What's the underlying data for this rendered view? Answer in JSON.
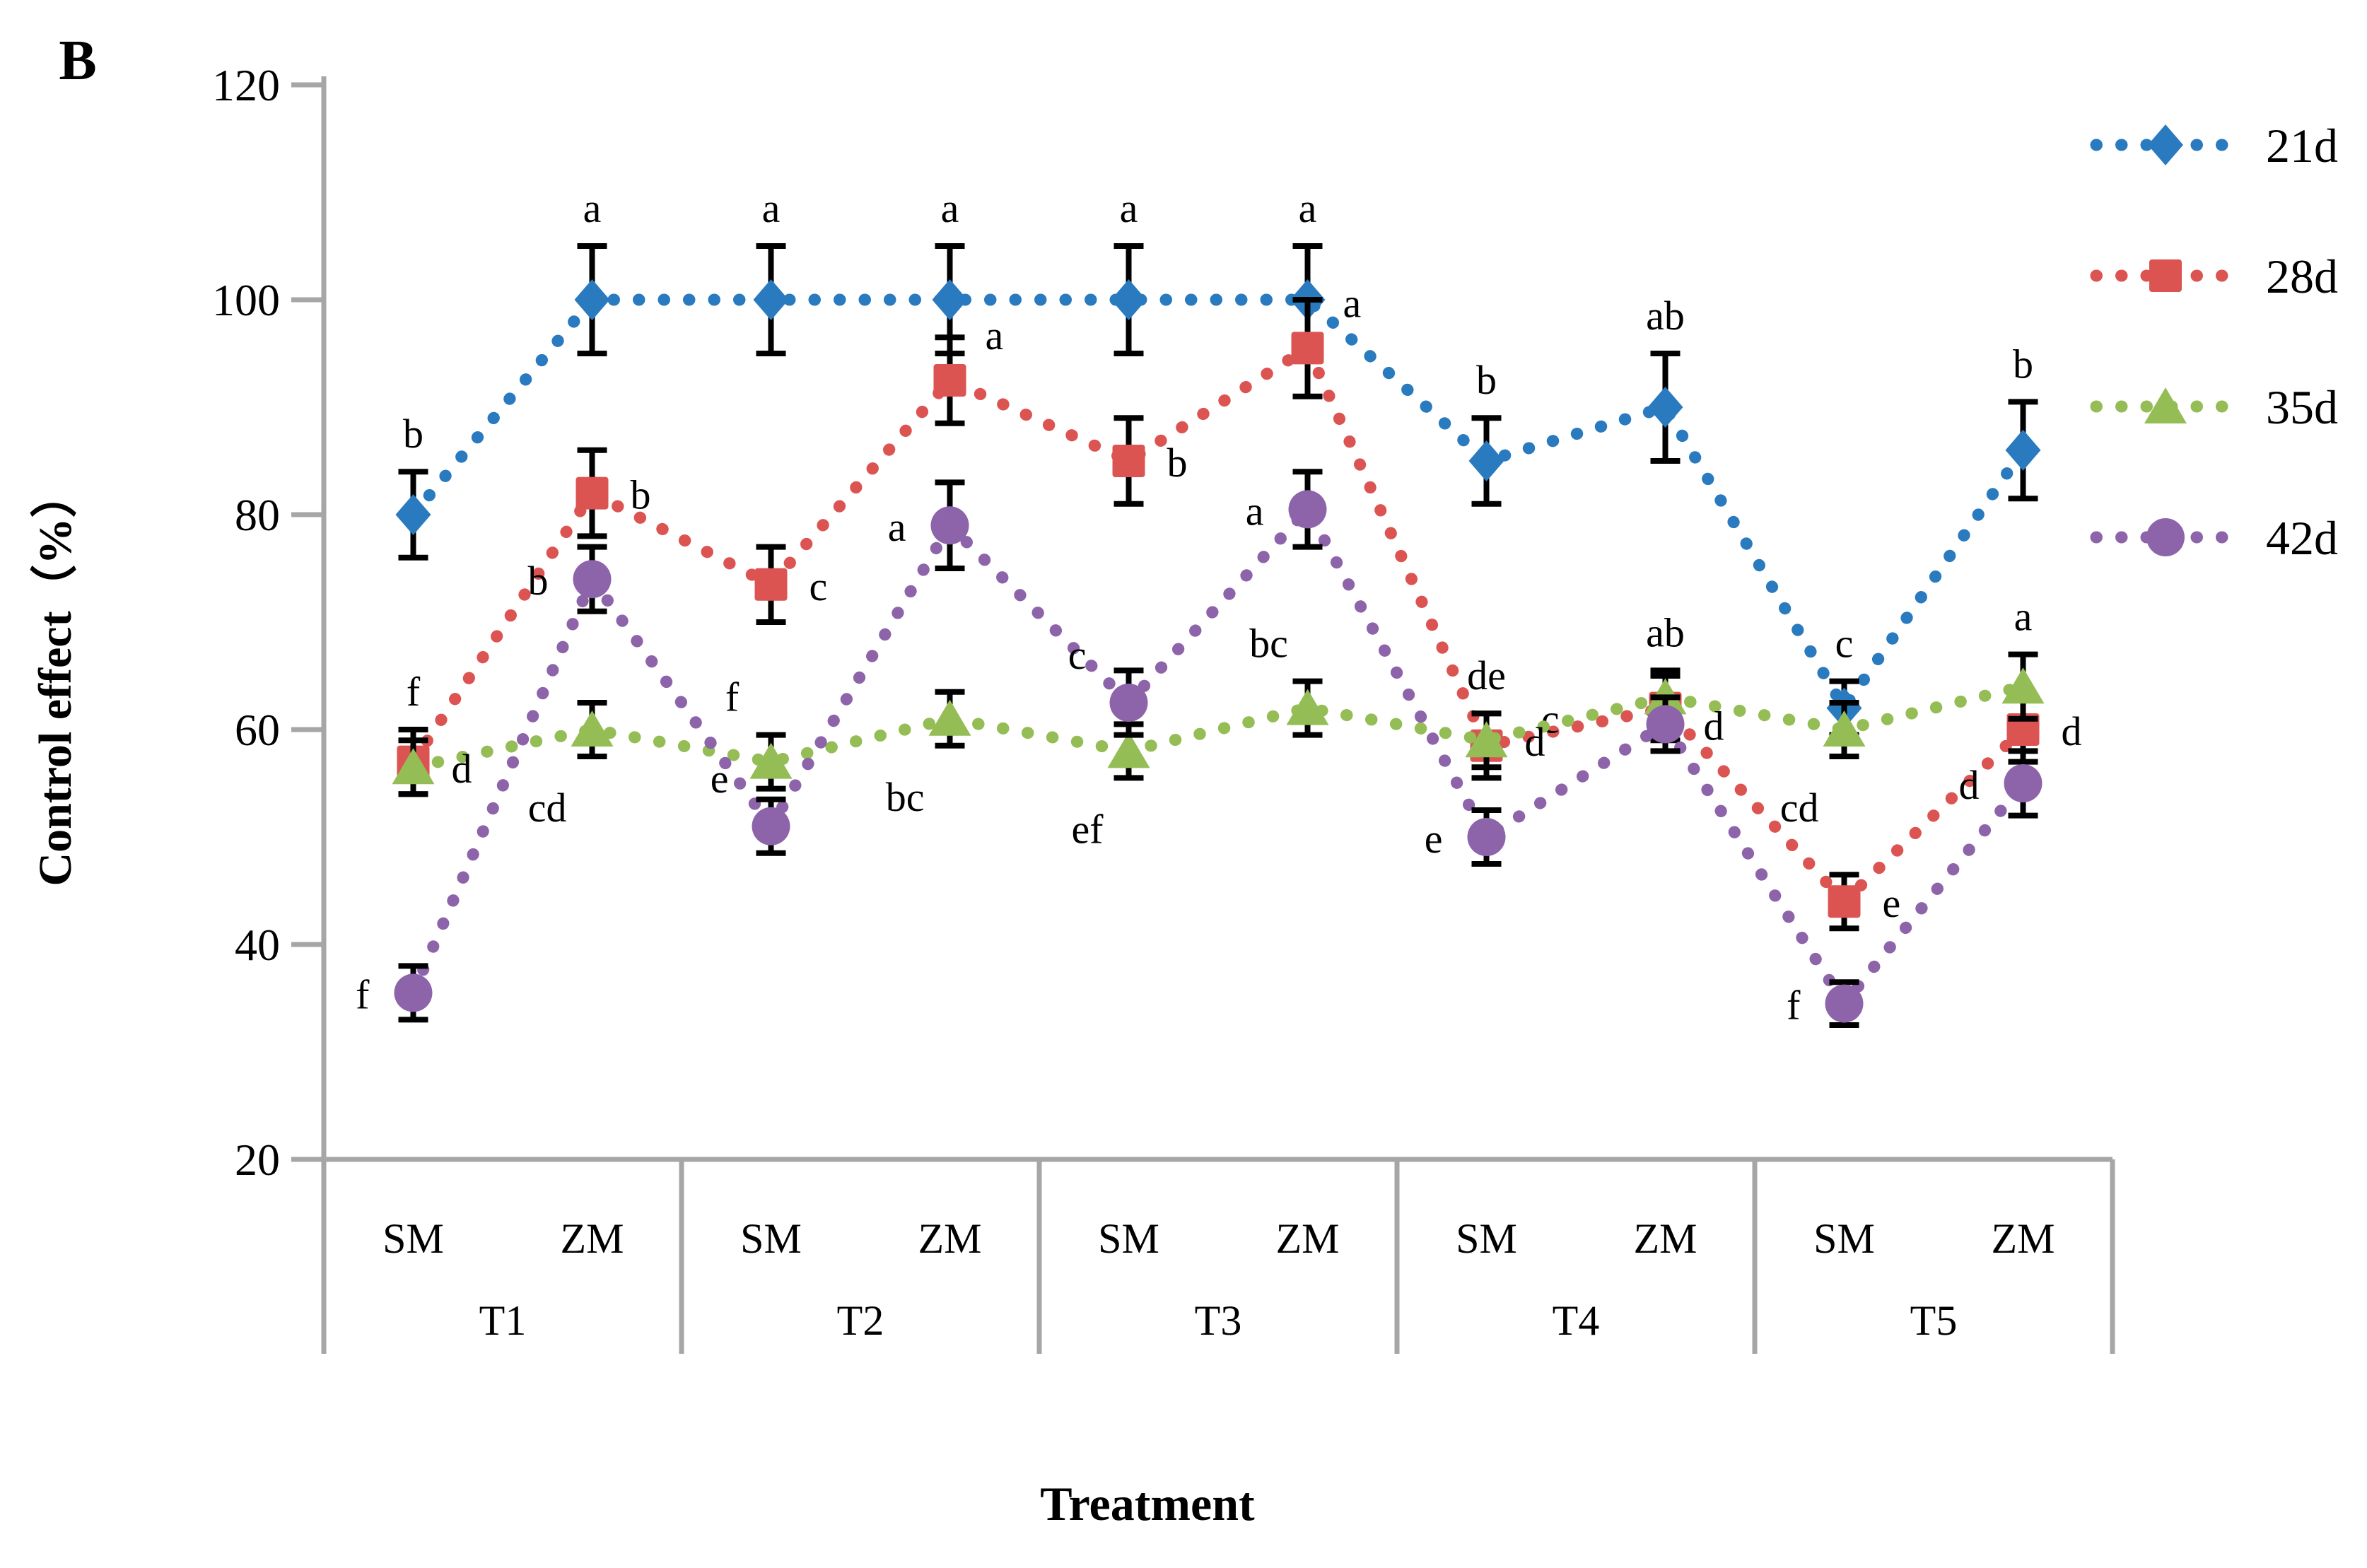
{
  "panel_label": "B",
  "y_axis": {
    "title": "Control effect（%）",
    "tick_labels": [
      "20",
      "40",
      "60",
      "80",
      "100",
      "120"
    ],
    "tick_values": [
      20,
      40,
      60,
      80,
      100,
      120
    ],
    "min": 20,
    "max": 120
  },
  "x_axis": {
    "title": "Treatment",
    "groups": [
      {
        "label": "T1",
        "subs": [
          "SM",
          "ZM"
        ]
      },
      {
        "label": "T2",
        "subs": [
          "SM",
          "ZM"
        ]
      },
      {
        "label": "T3",
        "subs": [
          "SM",
          "ZM"
        ]
      },
      {
        "label": "T4",
        "subs": [
          "SM",
          "ZM"
        ]
      },
      {
        "label": "T5",
        "subs": [
          "SM",
          "ZM"
        ]
      }
    ]
  },
  "legend": {
    "items": [
      {
        "label": "21d",
        "marker": "diamond",
        "color": "#2a7abf"
      },
      {
        "label": "28d",
        "marker": "square",
        "color": "#dc5452"
      },
      {
        "label": "35d",
        "marker": "triangle",
        "color": "#95bd55"
      },
      {
        "label": "42d",
        "marker": "circle",
        "color": "#8d64aa"
      }
    ]
  },
  "colors": {
    "axis": "#a6a6a6",
    "error_bar": "#000000",
    "blue": "#2a7abf",
    "red": "#dc5452",
    "green": "#95bd55",
    "purple": "#8d64aa"
  },
  "chart_data": {
    "type": "line",
    "title": "",
    "xlabel": "Treatment",
    "ylabel": "Control effect（%）",
    "ylim": [
      20,
      120
    ],
    "grid": false,
    "legend_position": "top-right",
    "line_style": "dotted",
    "categories": [
      "T1-SM",
      "T1-ZM",
      "T2-SM",
      "T2-ZM",
      "T3-SM",
      "T3-ZM",
      "T4-SM",
      "T4-ZM",
      "T5-SM",
      "T5-ZM"
    ],
    "series": [
      {
        "name": "21d",
        "marker": "diamond",
        "color": "#2a7abf",
        "values": [
          80,
          100,
          100,
          100,
          100,
          100,
          85,
          90,
          62,
          86
        ],
        "errors": [
          4,
          5,
          5,
          5,
          5,
          5,
          4,
          5,
          2.5,
          4.5
        ],
        "letters": [
          {
            "t": "b",
            "pos": "above"
          },
          {
            "t": "a",
            "pos": "above"
          },
          {
            "t": "a",
            "pos": "above"
          },
          {
            "t": "a",
            "pos": "above"
          },
          {
            "t": "a",
            "pos": "above"
          },
          {
            "t": "a",
            "pos": "above"
          },
          {
            "t": "b",
            "pos": "above"
          },
          {
            "t": "ab",
            "pos": "above"
          },
          {
            "t": "c",
            "pos": "above"
          },
          {
            "t": "b",
            "pos": "above"
          }
        ]
      },
      {
        "name": "28d",
        "marker": "square",
        "color": "#dc5452",
        "values": [
          57,
          82,
          73.5,
          92.5,
          85,
          95.5,
          58.5,
          62,
          44,
          60
        ],
        "errors": [
          3,
          4,
          3.5,
          4,
          4,
          4.5,
          3,
          3,
          2.5,
          3
        ],
        "letters": [
          {
            "t": "f",
            "pos": "above"
          },
          {
            "t": "b",
            "pos": "right"
          },
          {
            "t": "c",
            "pos": "right"
          },
          {
            "t": "a",
            "pos": "right-up"
          },
          {
            "t": "b",
            "pos": "right"
          },
          {
            "t": "a",
            "pos": "right-up"
          },
          {
            "t": "de",
            "pos": "above"
          },
          {
            "t": "c",
            "pos": "far-left"
          },
          {
            "t": "e",
            "pos": "right"
          },
          {
            "t": "d",
            "pos": "right"
          }
        ]
      },
      {
        "name": "35d",
        "marker": "triangle",
        "color": "#95bd55",
        "values": [
          56.5,
          60,
          57,
          61,
          58,
          62,
          59,
          63,
          60,
          64
        ],
        "errors": [
          2.5,
          2.5,
          2.5,
          2.5,
          2.5,
          2.5,
          2.5,
          2.5,
          2.5,
          3
        ],
        "letters": [
          {
            "t": "d",
            "pos": "right"
          },
          {
            "t": "cd",
            "pos": "below-left"
          },
          {
            "t": "f",
            "pos": "above-left"
          },
          {
            "t": "bc",
            "pos": "below-left"
          },
          {
            "t": "ef",
            "pos": "below-left"
          },
          {
            "t": "bc",
            "pos": "above-left"
          },
          {
            "t": "d",
            "pos": "right"
          },
          {
            "t": "ab",
            "pos": "above"
          },
          {
            "t": "cd",
            "pos": "below-left"
          },
          {
            "t": "a",
            "pos": "above"
          }
        ]
      },
      {
        "name": "42d",
        "marker": "circle",
        "color": "#8d64aa",
        "values": [
          35.5,
          74,
          51,
          79,
          62.5,
          80.5,
          50,
          60.5,
          34.5,
          55
        ],
        "errors": [
          2.5,
          3,
          2.5,
          4,
          3,
          3.5,
          2.5,
          2.5,
          2,
          3
        ],
        "letters": [
          {
            "t": "f",
            "pos": "left"
          },
          {
            "t": "b",
            "pos": "left"
          },
          {
            "t": "e",
            "pos": "left-up"
          },
          {
            "t": "a",
            "pos": "left"
          },
          {
            "t": "c",
            "pos": "left-up"
          },
          {
            "t": "a",
            "pos": "left"
          },
          {
            "t": "e",
            "pos": "left"
          },
          {
            "t": "d",
            "pos": "right"
          },
          {
            "t": "f",
            "pos": "left"
          },
          {
            "t": "d",
            "pos": "left"
          }
        ]
      }
    ]
  }
}
